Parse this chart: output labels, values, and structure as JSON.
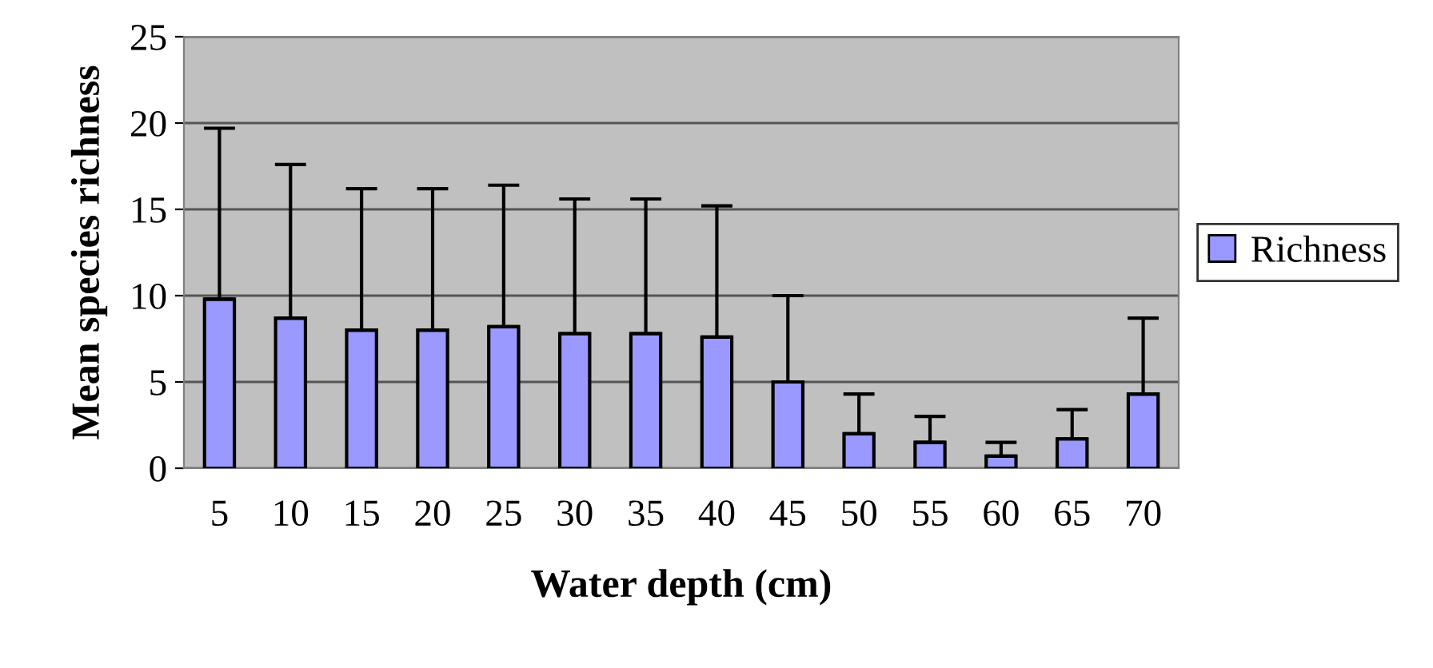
{
  "chart_data": {
    "type": "bar",
    "xlabel": "Water depth (cm)",
    "ylabel": "Mean species richness",
    "categories": [
      "5",
      "10",
      "15",
      "20",
      "25",
      "30",
      "35",
      "40",
      "45",
      "50",
      "55",
      "60",
      "65",
      "70"
    ],
    "series": [
      {
        "name": "Richness",
        "color": "#9999ff",
        "values": [
          9.8,
          8.7,
          8.0,
          8.0,
          8.2,
          7.8,
          7.8,
          7.6,
          5.0,
          2.0,
          1.5,
          0.7,
          1.7,
          4.3
        ],
        "errors": [
          [
            9.8,
            19.7
          ],
          [
            8.7,
            17.6
          ],
          [
            8.0,
            16.2
          ],
          [
            8.0,
            16.2
          ],
          [
            8.2,
            16.4
          ],
          [
            7.8,
            15.6
          ],
          [
            7.8,
            15.6
          ],
          [
            7.6,
            15.2
          ],
          [
            5.0,
            10.0
          ],
          [
            2.0,
            4.3
          ],
          [
            1.5,
            3.0
          ],
          [
            0.7,
            1.5
          ],
          [
            1.7,
            3.4
          ],
          [
            4.3,
            8.7
          ]
        ]
      }
    ],
    "ylim": [
      0,
      25
    ],
    "yticks": [
      0,
      5,
      10,
      15,
      20,
      25
    ],
    "grid": "y",
    "legend": "right"
  }
}
